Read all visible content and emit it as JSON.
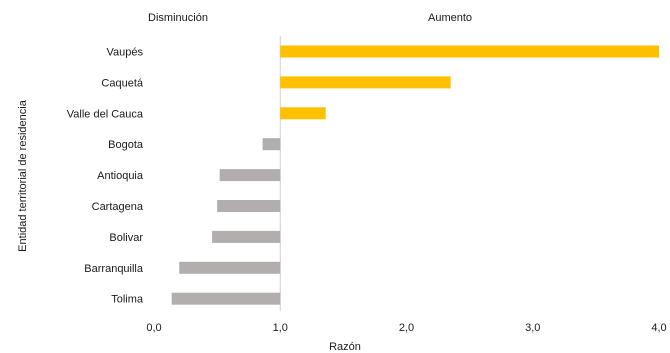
{
  "chart_data": {
    "type": "bar",
    "orientation": "horizontal",
    "categories": [
      "Vaupés",
      "Caquetá",
      "Valle del Cauca",
      "Bogota",
      "Antioquia",
      "Cartagena",
      "Bolivar",
      "Barranquilla",
      "Tolima"
    ],
    "values": [
      4.0,
      2.35,
      1.36,
      0.86,
      0.52,
      0.5,
      0.46,
      0.2,
      0.14
    ],
    "baseline": 1.0,
    "xlabel": "Razón",
    "ylabel": "Entidad territorial de residencia",
    "xlim": [
      0,
      4
    ],
    "xticks": [
      "0,0",
      "1,0",
      "2,0",
      "3,0",
      "4,0"
    ],
    "group_labels": {
      "decrease": "Disminución",
      "increase": "Aumento"
    },
    "colors": {
      "increase": "#FFC000",
      "decrease": "#B3AEAE",
      "baseline": "#cfcfcf"
    },
    "grid": false,
    "legend": "none"
  }
}
